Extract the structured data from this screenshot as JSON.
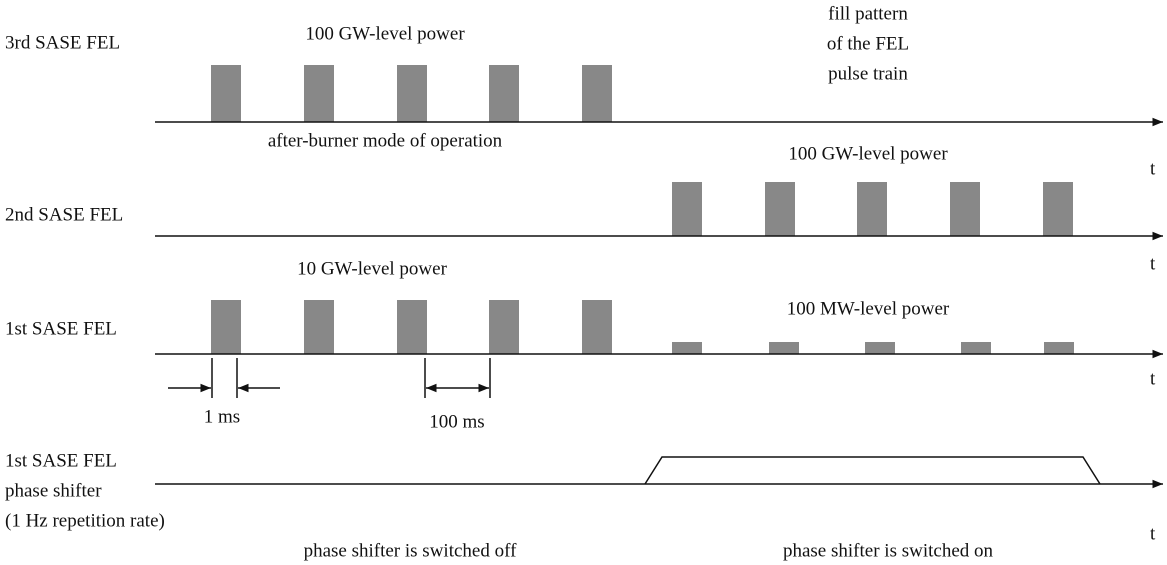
{
  "rows": [
    {
      "label": [
        "3rd SASE FEL"
      ],
      "axis": "t"
    },
    {
      "label": [
        "2nd SASE FEL"
      ],
      "axis": "t"
    },
    {
      "label": [
        "1st SASE FEL"
      ],
      "axis": "t"
    },
    {
      "label": [
        "1st SASE FEL",
        "phase shifter",
        "(1 Hz repetition rate)"
      ],
      "axis": "t"
    }
  ],
  "annotations": {
    "top_power": "100 GW-level power",
    "fill_pattern": [
      "fill pattern",
      "of the FEL",
      "pulse train"
    ],
    "after_burner": "after-burner mode of operation",
    "second_power": "100 GW-level power",
    "first_power": "10 GW-level power",
    "first_low_power": "100 MW-level power",
    "pulse_width": "1 ms",
    "pulse_period": "100 ms",
    "shifter_off": "phase shifter is switched off",
    "shifter_on": "phase shifter is switched on"
  }
}
